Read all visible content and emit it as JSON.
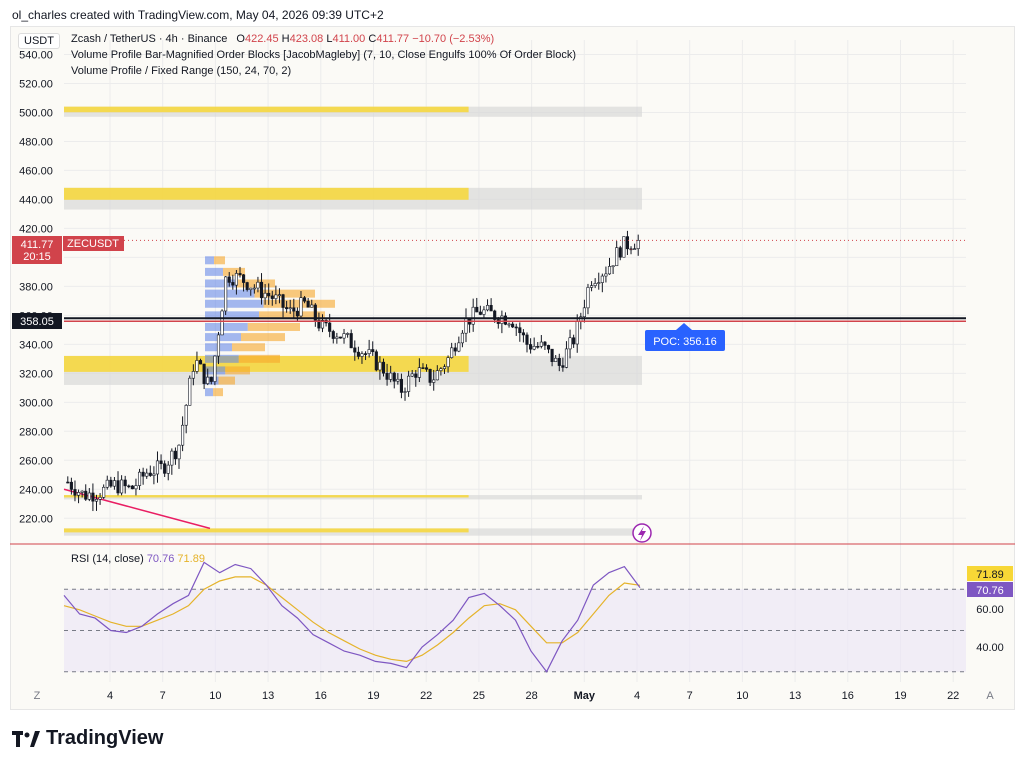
{
  "header": {
    "attribution": "ol_charles created with TradingView.com, May 04, 2026 09:39 UTC+2"
  },
  "legend": {
    "currency_button": "USDT",
    "symbol_line": "Zcash / TetherUS · 4h · Binance",
    "ohlc": {
      "o_label": "O",
      "o": "422.45",
      "h_label": "H",
      "h": "423.08",
      "l_label": "L",
      "l": "411.00",
      "c_label": "C",
      "c": "411.77",
      "change": "−10.70 (−2.53%)"
    },
    "indicator1": "Volume Profile Bar-Magnified Order Blocks [JacobMagleby] (7, 10, Close Engulfs 100% Of Order Block)",
    "indicator2": "Volume Profile / Fixed Range (150, 24, 70, 2)"
  },
  "rsi": {
    "title": "RSI (14, close)",
    "value": "70.76",
    "ma_value": "71.89",
    "axis_labels": [
      "60.00",
      "40.00"
    ],
    "badge_value": "70.76",
    "badge_ma": "71.89"
  },
  "badges": {
    "price": "411.77",
    "symbol": "ZECUSDT",
    "countdown": "20:15",
    "level": "358.05",
    "poc": "POC: 356.16"
  },
  "buttons": {
    "z": "Z",
    "a": "A"
  },
  "brand": {
    "name": "TradingView"
  },
  "colors": {
    "up": "#26a69a",
    "down": "#ef5350",
    "candle": "#131722",
    "orderblock": "#f7d736",
    "vp_blue": "#5b7fe8",
    "vp_orange": "#f7a72c",
    "rsi": "#7e57c2",
    "rsi_ma": "#e5b32a",
    "poc": "#2962ff",
    "last_price": "#d1434b"
  },
  "chart_data": [
    {
      "type": "candlestick",
      "title": "Zcash / TetherUS · 4h · Binance",
      "ylim": [
        205,
        550
      ],
      "y_ticks": [
        "220.00",
        "240.00",
        "260.00",
        "280.00",
        "300.00",
        "320.00",
        "340.00",
        "360.00",
        "380.00",
        "400.00",
        "420.00",
        "440.00",
        "460.00",
        "480.00",
        "500.00",
        "520.00",
        "540.00"
      ],
      "x_ticks": [
        "4",
        "7",
        "10",
        "13",
        "16",
        "19",
        "22",
        "25",
        "28",
        "May",
        "4",
        "7",
        "10",
        "13",
        "16",
        "19",
        "22"
      ],
      "close_path": [
        {
          "x": "Apr 1",
          "y": 245
        },
        {
          "x": "Apr 2",
          "y": 236
        },
        {
          "x": "Apr 3",
          "y": 238
        },
        {
          "x": "Apr 4",
          "y": 243
        },
        {
          "x": "Apr 5",
          "y": 240
        },
        {
          "x": "Apr 6",
          "y": 252
        },
        {
          "x": "Apr 7",
          "y": 255
        },
        {
          "x": "Apr 8",
          "y": 270
        },
        {
          "x": "Apr 8.5",
          "y": 330
        },
        {
          "x": "Apr 9",
          "y": 310
        },
        {
          "x": "Apr 9.5",
          "y": 388
        },
        {
          "x": "Apr 10",
          "y": 385
        },
        {
          "x": "Apr 11",
          "y": 378
        },
        {
          "x": "Apr 12",
          "y": 372
        },
        {
          "x": "Apr 13",
          "y": 362
        },
        {
          "x": "Apr 14",
          "y": 368
        },
        {
          "x": "Apr 15",
          "y": 352
        },
        {
          "x": "Apr 16",
          "y": 348
        },
        {
          "x": "Apr 17",
          "y": 340
        },
        {
          "x": "Apr 18",
          "y": 332
        },
        {
          "x": "Apr 19",
          "y": 322
        },
        {
          "x": "Apr 20",
          "y": 308
        },
        {
          "x": "Apr 21",
          "y": 322
        },
        {
          "x": "Apr 22",
          "y": 316
        },
        {
          "x": "Apr 23",
          "y": 330
        },
        {
          "x": "Apr 24",
          "y": 355
        },
        {
          "x": "Apr 25",
          "y": 363
        },
        {
          "x": "Apr 26",
          "y": 360
        },
        {
          "x": "Apr 27",
          "y": 358
        },
        {
          "x": "Apr 28",
          "y": 340
        },
        {
          "x": "Apr 29",
          "y": 338
        },
        {
          "x": "Apr 30",
          "y": 325
        },
        {
          "x": "May 1",
          "y": 345
        },
        {
          "x": "May 2",
          "y": 385
        },
        {
          "x": "May 3",
          "y": 392
        },
        {
          "x": "May 3.5",
          "y": 408
        },
        {
          "x": "May 4",
          "y": 411.77
        }
      ],
      "last_price": 411.77,
      "horizontal_level": 358.05,
      "poc": 356.16,
      "order_blocks": [
        {
          "low": 497,
          "high": 504
        },
        {
          "low": 433,
          "high": 448
        },
        {
          "low": 312,
          "high": 332
        },
        {
          "low": 233,
          "high": 236
        },
        {
          "low": 208,
          "high": 213
        }
      ]
    },
    {
      "type": "line",
      "title": "RSI (14, close)",
      "ylim": [
        25,
        90
      ],
      "series": [
        {
          "name": "RSI",
          "values": [
            67,
            58,
            56,
            50,
            49,
            52,
            58,
            63,
            67,
            83,
            78,
            82,
            80,
            72,
            62,
            56,
            48,
            44,
            40,
            38,
            35,
            34,
            32,
            42,
            48,
            55,
            66,
            68,
            62,
            55,
            40,
            30,
            45,
            55,
            72,
            78,
            81,
            70.76
          ]
        },
        {
          "name": "RSI-based MA",
          "values": [
            62,
            60,
            57,
            54,
            52,
            52,
            55,
            58,
            62,
            70,
            74,
            76,
            76,
            72,
            66,
            60,
            54,
            49,
            45,
            41,
            38,
            36,
            35,
            38,
            43,
            49,
            56,
            62,
            63,
            60,
            52,
            44,
            44,
            49,
            58,
            67,
            73,
            71.89
          ]
        }
      ],
      "levels": [
        70,
        50,
        30
      ]
    }
  ]
}
